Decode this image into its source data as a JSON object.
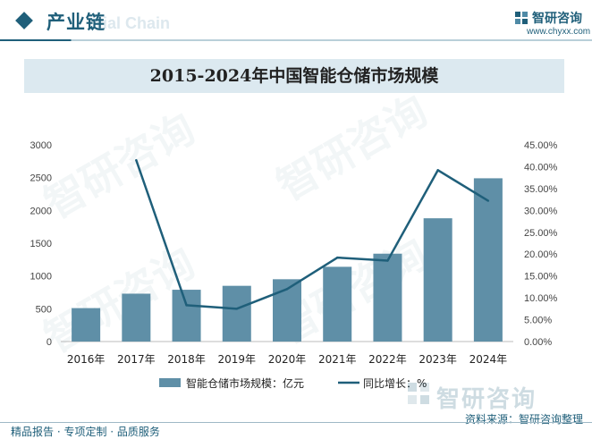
{
  "header": {
    "section_title": "产业链",
    "section_watermark": "rial Chain",
    "brand_name": "智研咨询",
    "brand_url": "www.chyxx.com"
  },
  "chart_data": {
    "type": "bar",
    "title": "2015-2024年中国智能仓储市场规模",
    "categories": [
      "2016年",
      "2017年",
      "2018年",
      "2019年",
      "2020年",
      "2021年",
      "2022年",
      "2023年",
      "2024年"
    ],
    "series": [
      {
        "name": "智能仓储市场规模：亿元",
        "type": "bar",
        "axis": "left",
        "color": "#5f8fa7",
        "values": [
          510,
          730,
          790,
          850,
          950,
          1140,
          1340,
          1880,
          2490
        ]
      },
      {
        "name": "同比增长：%",
        "type": "line",
        "axis": "right",
        "color": "#1f5f7a",
        "values": [
          null,
          41.5,
          8.3,
          7.5,
          12.0,
          19.2,
          18.5,
          39.2,
          32.2
        ]
      }
    ],
    "left_axis": {
      "ylim": [
        0,
        3000
      ],
      "ticks": [
        "0",
        "500",
        "1000",
        "1500",
        "2000",
        "2500",
        "3000"
      ]
    },
    "right_axis": {
      "ylim": [
        0,
        45
      ],
      "ticks": [
        "0.00%",
        "5.00%",
        "10.00%",
        "15.00%",
        "20.00%",
        "25.00%",
        "30.00%",
        "35.00%",
        "40.00%",
        "45.00%"
      ]
    },
    "grid": false,
    "legend_position": "bottom"
  },
  "footer": {
    "left_text": "精品报告 · 专项定制 · 品质服务",
    "source_text": "资料来源：智研咨询整理",
    "bottom_brand": "智研咨询"
  },
  "watermark_text": "智研咨询"
}
